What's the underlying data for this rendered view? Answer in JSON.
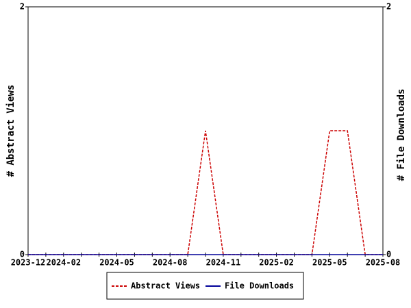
{
  "chart_data": {
    "type": "line",
    "categories": [
      "2023-12",
      null,
      "2024-02",
      null,
      null,
      "2024-05",
      null,
      null,
      "2024-08",
      null,
      null,
      "2024-11",
      null,
      null,
      "2025-02",
      null,
      null,
      "2025-05",
      null,
      null,
      "2025-08"
    ],
    "series": [
      {
        "name": "Abstract Views",
        "color": "#cc0000",
        "dashed": true,
        "values": [
          0,
          0,
          0,
          0,
          0,
          0,
          0,
          0,
          0,
          0,
          1,
          0,
          0,
          0,
          0,
          0,
          0,
          1,
          1,
          0,
          0
        ]
      },
      {
        "name": "File Downloads",
        "color": "#000099",
        "axis": "y2",
        "values": [
          0,
          0,
          0,
          0,
          0,
          0,
          0,
          0,
          0,
          0,
          0,
          0,
          0,
          0,
          0,
          0,
          0,
          0,
          0,
          0,
          0
        ]
      }
    ],
    "ylabel": "# Abstract Views",
    "y2label": "# File Downloads",
    "ylim": [
      0,
      2
    ],
    "yticks": [
      0,
      2
    ],
    "y2lim": [
      0,
      2
    ],
    "y2ticks": [
      0,
      2
    ],
    "grid": false,
    "legend": "bottom"
  }
}
